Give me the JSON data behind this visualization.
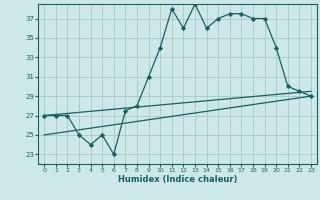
{
  "xlabel": "Humidex (Indice chaleur)",
  "bg_color": "#cce8e8",
  "grid_color": "#aacccc",
  "line_color": "#1a6060",
  "xlim": [
    -0.5,
    23.5
  ],
  "ylim": [
    22,
    38.5
  ],
  "yticks": [
    23,
    25,
    27,
    29,
    31,
    33,
    35,
    37
  ],
  "xticks": [
    0,
    1,
    2,
    3,
    4,
    5,
    6,
    7,
    8,
    9,
    10,
    11,
    12,
    13,
    14,
    15,
    16,
    17,
    18,
    19,
    20,
    21,
    22,
    23
  ],
  "series1_x": [
    0,
    1,
    2,
    3,
    4,
    5,
    6,
    7,
    8,
    9,
    10,
    11,
    12,
    13,
    14,
    15,
    16,
    17,
    18,
    19,
    20,
    21,
    22,
    23
  ],
  "series1_y": [
    27,
    27,
    27,
    25,
    24,
    25,
    23,
    27.5,
    28,
    31,
    34,
    38,
    36,
    38.5,
    36,
    37,
    37.5,
    37.5,
    37,
    37,
    34,
    30,
    29.5,
    29
  ],
  "series2_x": [
    0,
    23
  ],
  "series2_y": [
    27,
    29.5
  ],
  "series3_x": [
    0,
    23
  ],
  "series3_y": [
    25,
    29
  ]
}
